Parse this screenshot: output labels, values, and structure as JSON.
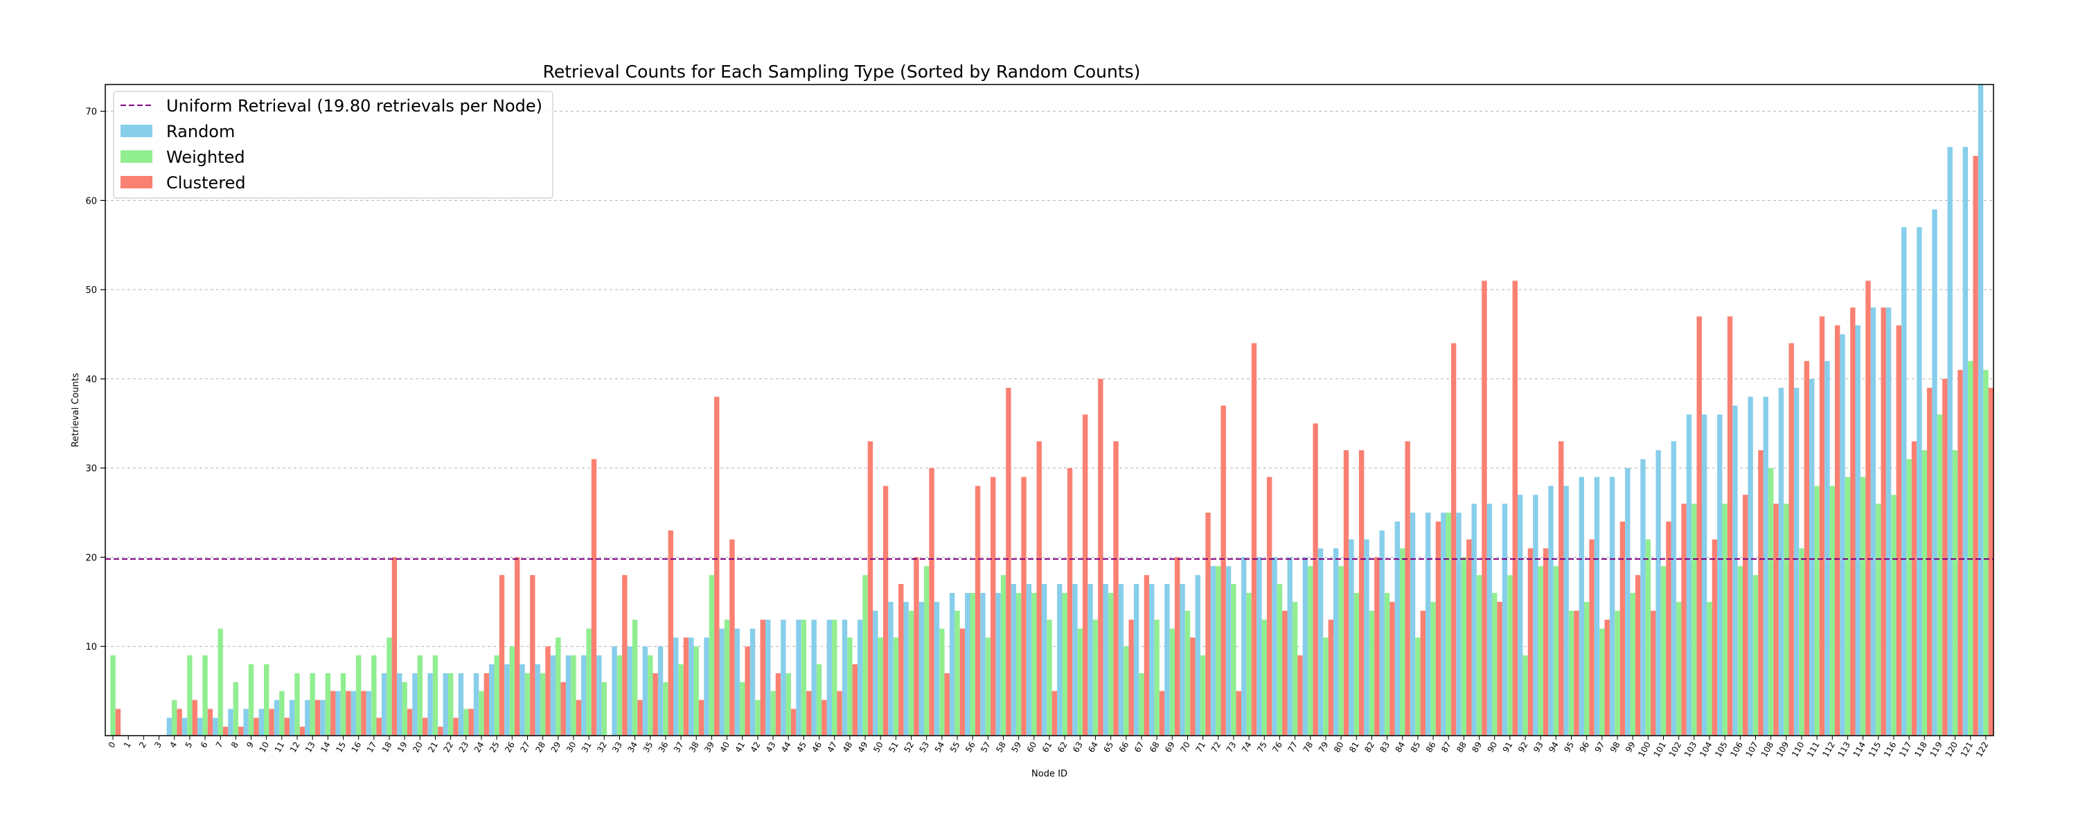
{
  "chart_data": {
    "type": "bar",
    "title": "Retrieval Counts for Each Sampling Type (Sorted by Random Counts)",
    "xlabel": "Node ID",
    "ylabel": "Retrieval Counts",
    "ylim": [
      0,
      73
    ],
    "yticks": [
      10,
      20,
      30,
      40,
      50,
      60,
      70
    ],
    "grid": "horizontal dotted",
    "legend_position": "top-left",
    "reference_line": {
      "label": "Uniform Retrieval (19.80 retrievals per Node)",
      "value": 19.8,
      "color": "#800080"
    },
    "categories": [
      "0",
      "1",
      "2",
      "3",
      "4",
      "5",
      "6",
      "7",
      "8",
      "9",
      "10",
      "11",
      "12",
      "13",
      "14",
      "15",
      "16",
      "17",
      "18",
      "19",
      "20",
      "21",
      "22",
      "23",
      "24",
      "25",
      "26",
      "27",
      "28",
      "29",
      "30",
      "31",
      "32",
      "33",
      "34",
      "35",
      "36",
      "37",
      "38",
      "39",
      "40",
      "41",
      "42",
      "43",
      "44",
      "45",
      "46",
      "47",
      "48",
      "49",
      "50",
      "51",
      "52",
      "53",
      "54",
      "55",
      "56",
      "57",
      "58",
      "59",
      "60",
      "61",
      "62",
      "63",
      "64",
      "65",
      "66",
      "67",
      "68",
      "69",
      "70",
      "71",
      "72",
      "73",
      "74",
      "75",
      "76",
      "77",
      "78",
      "79",
      "80",
      "81",
      "82",
      "83",
      "84",
      "85",
      "86",
      "87",
      "88",
      "89",
      "90",
      "91",
      "92",
      "93",
      "94",
      "95",
      "96",
      "97",
      "98",
      "99",
      "100",
      "101",
      "102",
      "103",
      "104",
      "105",
      "106",
      "107",
      "108",
      "109",
      "110",
      "111",
      "112",
      "113",
      "114",
      "115",
      "116",
      "117",
      "118",
      "119",
      "120",
      "121",
      "122"
    ],
    "series": [
      {
        "name": "Random",
        "color": "#87CEEB",
        "values": [
          0,
          0,
          0,
          0,
          2,
          2,
          2,
          2,
          3,
          3,
          3,
          4,
          4,
          4,
          4,
          5,
          5,
          5,
          7,
          7,
          7,
          7,
          7,
          7,
          7,
          8,
          8,
          8,
          8,
          9,
          9,
          9,
          9,
          10,
          10,
          10,
          10,
          11,
          11,
          11,
          12,
          12,
          12,
          13,
          13,
          13,
          13,
          13,
          13,
          13,
          14,
          15,
          15,
          15,
          15,
          16,
          16,
          16,
          16,
          17,
          17,
          17,
          17,
          17,
          17,
          17,
          17,
          17,
          17,
          17,
          17,
          18,
          19,
          19,
          20,
          20,
          20,
          20,
          20,
          21,
          21,
          22,
          22,
          23,
          24,
          25,
          25,
          25,
          25,
          26,
          26,
          26,
          27,
          27,
          28,
          28,
          29,
          29,
          29,
          30,
          31,
          32,
          33,
          36,
          36,
          36,
          37,
          38,
          38,
          39,
          39,
          40,
          42,
          45,
          46,
          48,
          48,
          57,
          57,
          59,
          66,
          66,
          73
        ]
      },
      {
        "name": "Weighted",
        "color": "#90EE90",
        "values": [
          9,
          0,
          0,
          0,
          4,
          9,
          9,
          12,
          6,
          8,
          8,
          5,
          7,
          7,
          7,
          7,
          9,
          9,
          11,
          6,
          9,
          9,
          7,
          3,
          5,
          9,
          10,
          7,
          7,
          11,
          9,
          12,
          6,
          9,
          13,
          9,
          6,
          8,
          10,
          18,
          13,
          6,
          4,
          5,
          7,
          13,
          8,
          13,
          11,
          18,
          11,
          11,
          14,
          19,
          12,
          14,
          16,
          11,
          18,
          16,
          16,
          13,
          16,
          12,
          13,
          16,
          10,
          7,
          13,
          12,
          14,
          9,
          19,
          17,
          16,
          13,
          17,
          15,
          19,
          11,
          19,
          16,
          14,
          16,
          21,
          11,
          15,
          25,
          20,
          18,
          16,
          18,
          9,
          19,
          19,
          14,
          15,
          12,
          14,
          16,
          22,
          19,
          15,
          26,
          15,
          26,
          19,
          18,
          30,
          26,
          21,
          28,
          28,
          29,
          29,
          26,
          27,
          31,
          32,
          36,
          32,
          42,
          41
        ]
      },
      {
        "name": "Clustered",
        "color": "#FA8072",
        "values": [
          3,
          0,
          0,
          0,
          3,
          4,
          3,
          1,
          1,
          2,
          3,
          2,
          1,
          4,
          5,
          5,
          5,
          2,
          20,
          3,
          2,
          1,
          2,
          3,
          7,
          18,
          20,
          18,
          10,
          6,
          4,
          31,
          0,
          18,
          4,
          7,
          23,
          11,
          4,
          38,
          22,
          10,
          13,
          7,
          3,
          5,
          4,
          5,
          8,
          33,
          28,
          17,
          20,
          30,
          7,
          12,
          28,
          29,
          39,
          29,
          33,
          5,
          30,
          36,
          40,
          33,
          13,
          18,
          5,
          20,
          11,
          25,
          37,
          5,
          44,
          29,
          14,
          9,
          35,
          13,
          32,
          32,
          20,
          15,
          33,
          14,
          24,
          44,
          22,
          51,
          15,
          51,
          21,
          21,
          33,
          14,
          22,
          13,
          24,
          18,
          14,
          24,
          26,
          47,
          22,
          47,
          27,
          32,
          26,
          44,
          42,
          47,
          46,
          48,
          51,
          48,
          46,
          33,
          39,
          40,
          41,
          65,
          39
        ]
      }
    ]
  }
}
